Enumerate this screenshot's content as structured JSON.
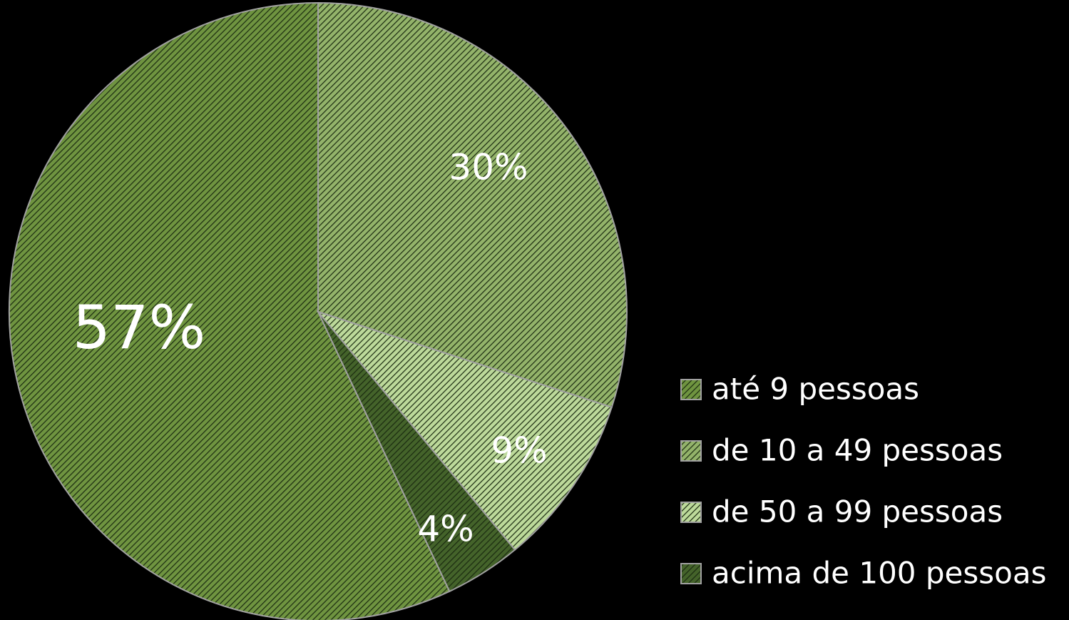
{
  "chart_data": {
    "type": "pie",
    "categories": [
      "até 9 pessoas",
      "de 10 a 49 pessoas",
      "de 50 a 99 pessoas",
      "acima de 100 pessoas"
    ],
    "values": [
      57,
      30,
      9,
      4
    ],
    "value_labels": [
      "57%",
      "30%",
      "9%",
      "4%"
    ],
    "colors": [
      "#6f9440",
      "#93b36a",
      "#bcd99a",
      "#44632a"
    ],
    "legend": "right"
  }
}
